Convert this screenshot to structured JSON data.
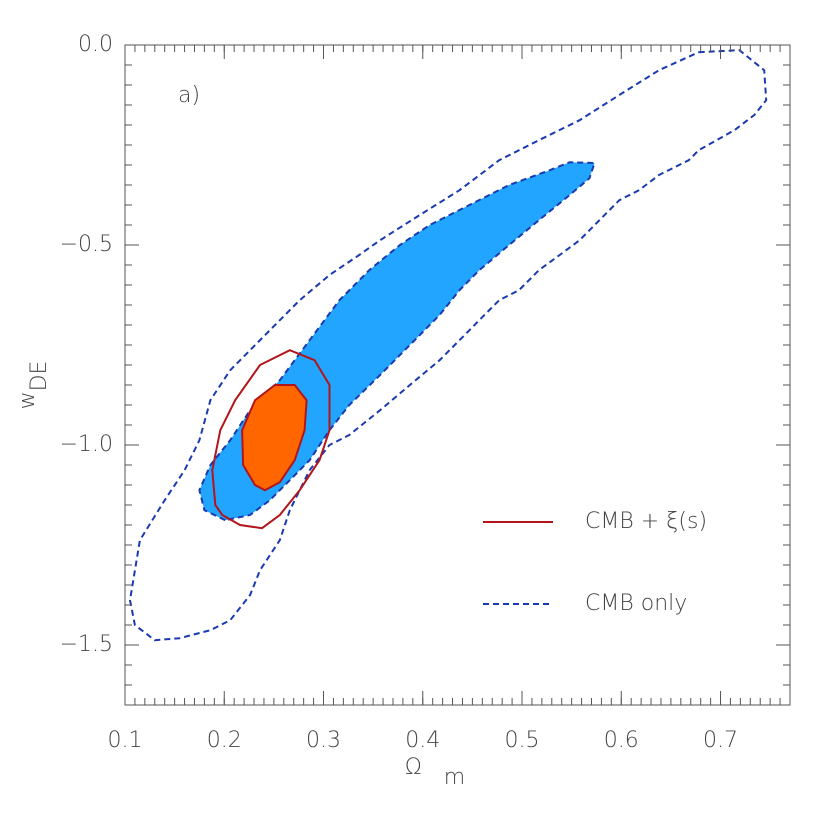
{
  "chart_data": {
    "type": "contour",
    "annotation": "a)",
    "xlabel": {
      "symbol": "Ω",
      "subscript": "m"
    },
    "ylabel": {
      "symbol": "w",
      "subscript": "DE"
    },
    "xlim": [
      0.1,
      0.77
    ],
    "ylim": [
      -1.65,
      0
    ],
    "xticks": [
      0.1,
      0.2,
      0.3,
      0.4,
      0.5,
      0.6,
      0.7
    ],
    "yticks": [
      {
        "value": 0,
        "label": "0.0"
      },
      {
        "value": -0.5,
        "label": "−0.5"
      },
      {
        "value": -1,
        "label": "−1.0"
      },
      {
        "value": -1.5,
        "label": "−1.5"
      }
    ],
    "minor_divisions": 10,
    "legend": "lower right",
    "series": [
      {
        "name": "CMB + ξ(s)",
        "color": "#b2151a",
        "linestyle": "solid",
        "contours": [
          {
            "x": [
              0.191,
              0.188,
              0.196,
              0.211,
              0.236,
              0.266,
              0.291,
              0.306,
              0.306,
              0.296,
              0.276,
              0.256,
              0.238,
              0.216,
              0.198
            ],
            "y": [
              -1.15,
              -1.063,
              -0.963,
              -0.888,
              -0.8,
              -0.763,
              -0.788,
              -0.85,
              -0.963,
              -1.038,
              -1.113,
              -1.175,
              -1.208,
              -1.2,
              -1.175
            ]
          },
          {
            "x": [
              0.231,
              0.219,
              0.218,
              0.231,
              0.251,
              0.271,
              0.283,
              0.281,
              0.271,
              0.256,
              0.241
            ],
            "y": [
              -1.1,
              -1.05,
              -0.963,
              -0.888,
              -0.85,
              -0.85,
              -0.888,
              -0.963,
              -1.038,
              -1.093,
              -1.113
            ],
            "fill": "#ff6600"
          }
        ]
      },
      {
        "name": "CMB only",
        "color": "#1a3ab0",
        "linestyle": "dashed",
        "contours": [
          {
            "x": [
              0.678,
              0.719,
              0.744,
              0.746,
              0.734,
              0.714,
              0.678,
              0.668,
              0.638,
              0.618,
              0.598,
              0.578,
              0.558,
              0.538,
              0.517,
              0.497,
              0.477,
              0.457,
              0.437,
              0.417,
              0.387,
              0.357,
              0.326,
              0.306,
              0.286,
              0.276,
              0.266,
              0.256,
              0.236,
              0.226,
              0.206,
              0.186,
              0.155,
              0.13,
              0.11,
              0.105,
              0.115,
              0.14,
              0.16,
              0.175,
              0.186,
              0.206,
              0.246,
              0.276,
              0.306,
              0.336,
              0.357,
              0.397,
              0.437,
              0.477,
              0.517,
              0.558,
              0.598,
              0.638
            ],
            "y": [
              -0.018,
              -0.013,
              -0.063,
              -0.138,
              -0.175,
              -0.213,
              -0.263,
              -0.288,
              -0.325,
              -0.363,
              -0.388,
              -0.438,
              -0.488,
              -0.525,
              -0.563,
              -0.613,
              -0.638,
              -0.688,
              -0.738,
              -0.788,
              -0.85,
              -0.913,
              -0.975,
              -1.0,
              -1.063,
              -1.113,
              -1.163,
              -1.238,
              -1.313,
              -1.375,
              -1.438,
              -1.463,
              -1.483,
              -1.488,
              -1.45,
              -1.388,
              -1.238,
              -1.138,
              -1.063,
              -0.988,
              -0.888,
              -0.813,
              -0.713,
              -0.638,
              -0.575,
              -0.525,
              -0.488,
              -0.425,
              -0.363,
              -0.288,
              -0.238,
              -0.188,
              -0.125,
              -0.063
            ]
          },
          {
            "x": [
              0.201,
              0.18,
              0.175,
              0.186,
              0.206,
              0.226,
              0.256,
              0.286,
              0.316,
              0.346,
              0.377,
              0.407,
              0.447,
              0.487,
              0.528,
              0.548,
              0.573,
              0.568,
              0.548,
              0.517,
              0.487,
              0.457,
              0.437,
              0.417,
              0.387,
              0.357,
              0.326,
              0.306,
              0.286,
              0.266,
              0.246,
              0.226
            ],
            "y": [
              -1.188,
              -1.163,
              -1.113,
              -1.05,
              -0.988,
              -0.913,
              -0.838,
              -0.738,
              -0.638,
              -0.563,
              -0.5,
              -0.45,
              -0.4,
              -0.35,
              -0.313,
              -0.293,
              -0.295,
              -0.333,
              -0.375,
              -0.438,
              -0.5,
              -0.563,
              -0.613,
              -0.675,
              -0.75,
              -0.825,
              -0.9,
              -0.963,
              -1.038,
              -1.088,
              -1.138,
              -1.175
            ],
            "fill": "#22a5ff"
          }
        ]
      }
    ]
  }
}
